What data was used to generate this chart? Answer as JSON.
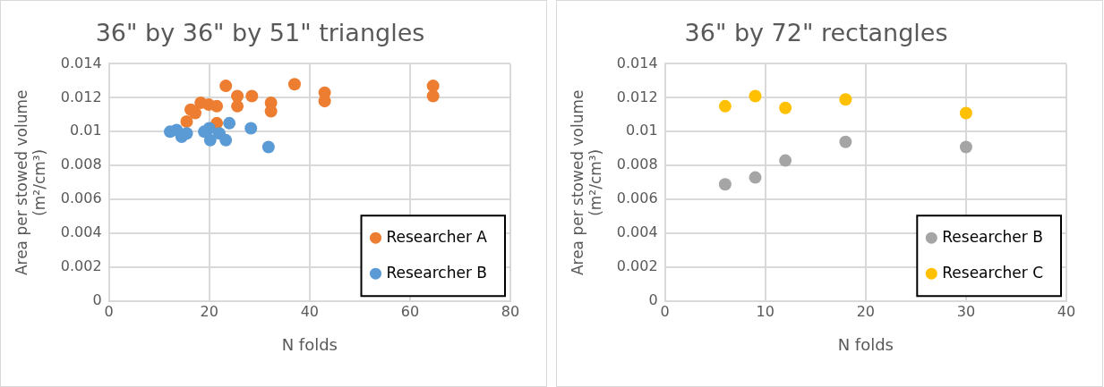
{
  "chart_data": [
    {
      "type": "scatter",
      "title": "36\" by 36\" by 51\" triangles",
      "xlabel": "N folds",
      "ylabel": "Area per stowed volume (m²/cm³)",
      "xlim": [
        0,
        80
      ],
      "xticks": [
        0,
        20,
        40,
        60,
        80
      ],
      "ylim": [
        0,
        0.014
      ],
      "yticks": [
        0,
        0.002,
        0.004,
        0.006,
        0.008,
        0.01,
        0.012,
        0.014
      ],
      "grid": true,
      "legend": "bottom right",
      "marker": "circle",
      "series": [
        {
          "name": "Researcher A",
          "color": "#ed7d31",
          "x": [
            23.3,
            37,
            64.6,
            64.6,
            43,
            43,
            32.3,
            32.3,
            28.5,
            25.6,
            25.6,
            21.5,
            19.9,
            18.3,
            16.3,
            17.2,
            15.5,
            21.5
          ],
          "values": [
            0.0127,
            0.0128,
            0.0127,
            0.0121,
            0.0123,
            0.0118,
            0.0117,
            0.0112,
            0.0121,
            0.0121,
            0.0115,
            0.0115,
            0.0116,
            0.0117,
            0.0113,
            0.0111,
            0.0106,
            0.0105
          ]
        },
        {
          "name": "Researcher B",
          "color": "#5b9bd5",
          "x": [
            12.2,
            13.5,
            14.5,
            15.5,
            19,
            20,
            20.2,
            22,
            23.3,
            24,
            28.3,
            31.8
          ],
          "values": [
            0.01,
            0.0101,
            0.0097,
            0.0099,
            0.01,
            0.0102,
            0.0095,
            0.0099,
            0.0095,
            0.0105,
            0.0102,
            0.0091
          ]
        }
      ]
    },
    {
      "type": "scatter",
      "title": "36\" by 72\" rectangles",
      "xlabel": "N folds",
      "ylabel": "Area per stowed volume (m²/cm³)",
      "xlim": [
        0,
        40
      ],
      "xticks": [
        0,
        10,
        20,
        30,
        40
      ],
      "ylim": [
        0,
        0.014
      ],
      "yticks": [
        0,
        0.002,
        0.004,
        0.006,
        0.008,
        0.01,
        0.012,
        0.014
      ],
      "grid": true,
      "legend": "bottom right",
      "marker": "circle",
      "series": [
        {
          "name": "Researcher B",
          "color": "#a5a5a5",
          "x": [
            6,
            9,
            12,
            18,
            30
          ],
          "values": [
            0.0069,
            0.0073,
            0.0083,
            0.0094,
            0.0091
          ]
        },
        {
          "name": "Researcher C",
          "color": "#ffc000",
          "x": [
            6,
            9,
            12,
            18,
            30
          ],
          "values": [
            0.0115,
            0.0121,
            0.0114,
            0.0119,
            0.0111
          ]
        }
      ]
    }
  ]
}
